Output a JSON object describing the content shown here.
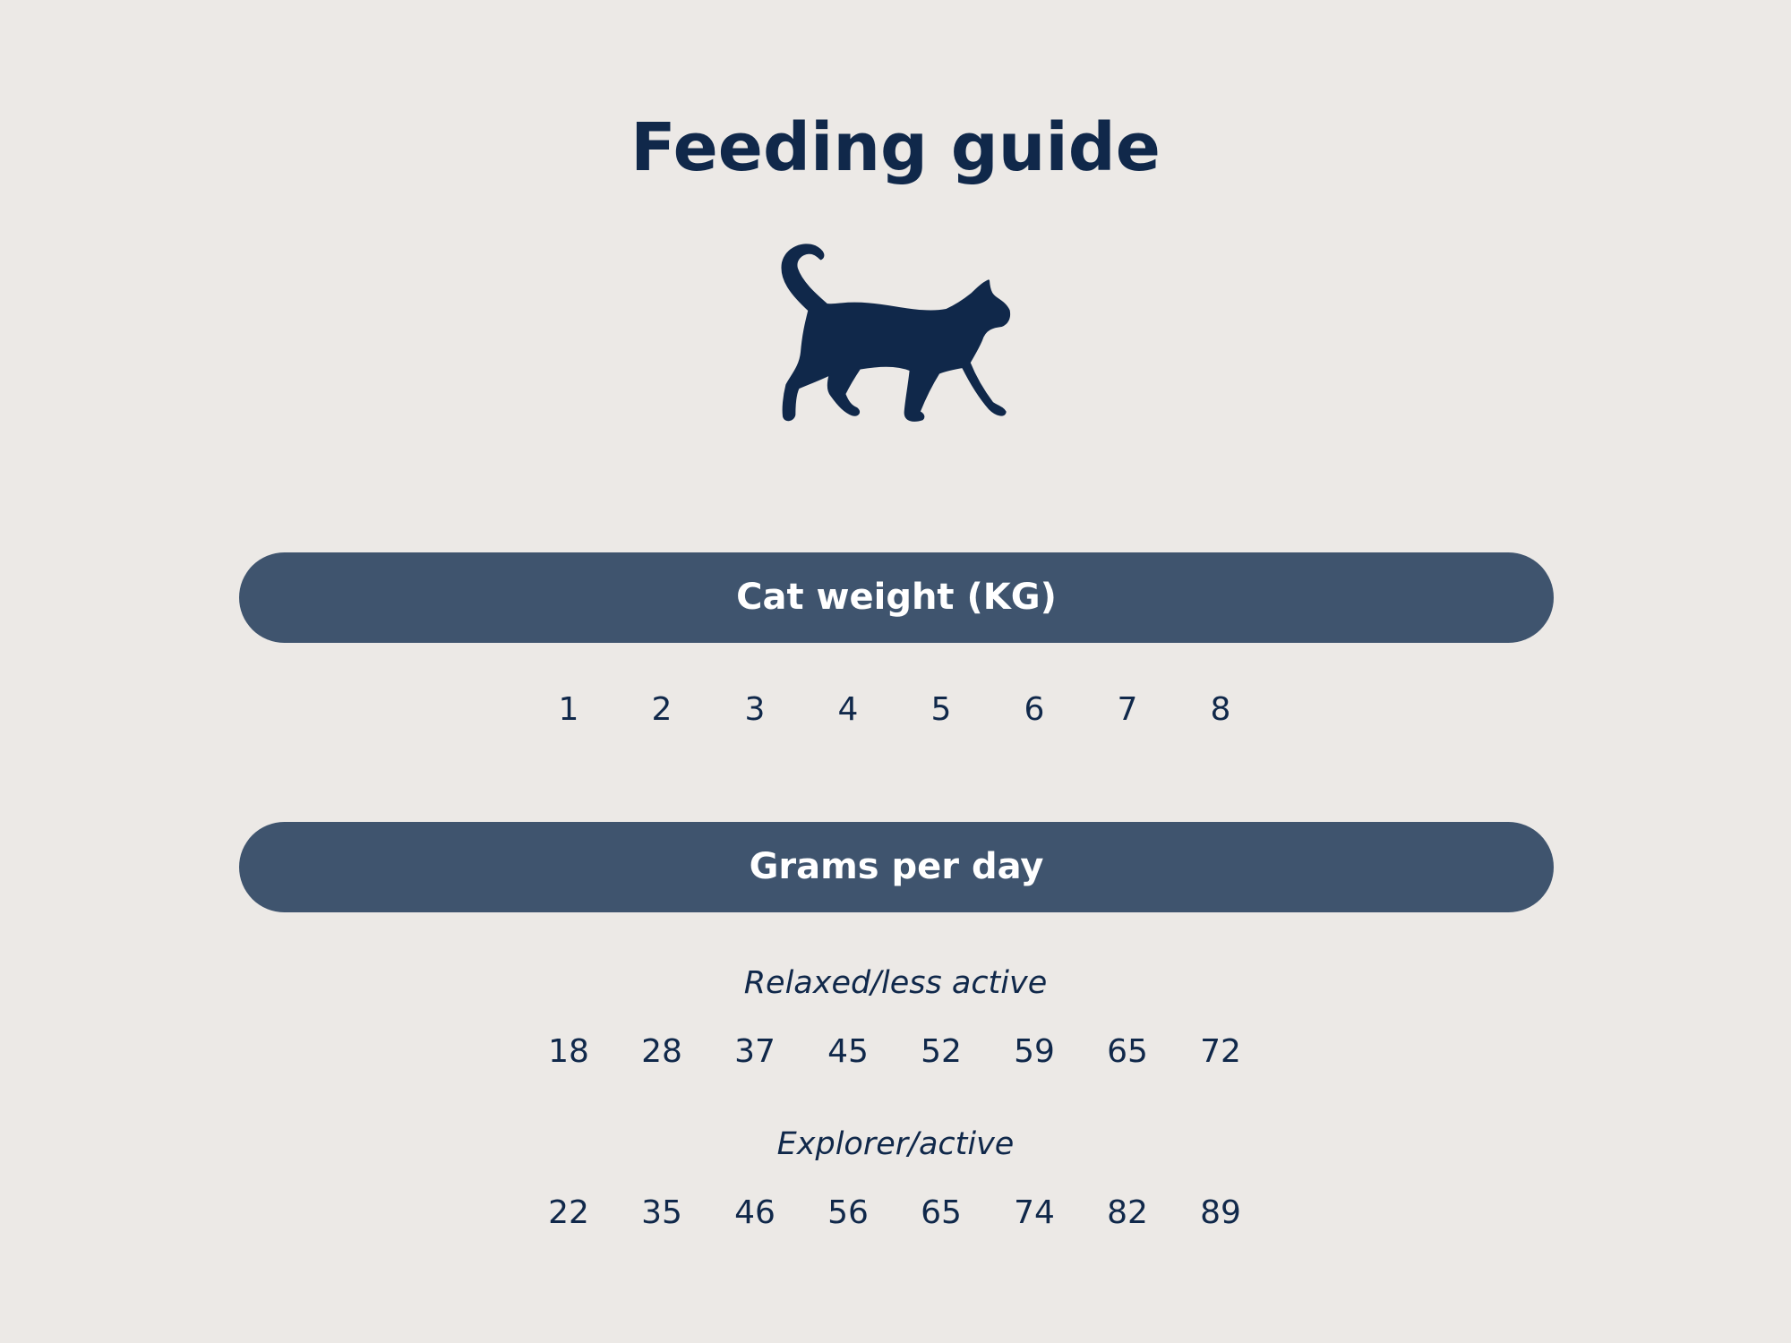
{
  "title": "Feeding guide",
  "icon": "walking-cat-icon",
  "colors": {
    "background": "#ece9e6",
    "text": "#10284a",
    "bar": "#3f546e"
  },
  "weight_header": "Cat weight (KG)",
  "weights": [
    "1",
    "2",
    "3",
    "4",
    "5",
    "6",
    "7",
    "8"
  ],
  "grams_header": "Grams per day",
  "relaxed": {
    "label": "Relaxed/less active",
    "values": [
      "18",
      "28",
      "37",
      "45",
      "52",
      "59",
      "65",
      "72"
    ]
  },
  "explorer": {
    "label": "Explorer/active",
    "values": [
      "22",
      "35",
      "46",
      "56",
      "65",
      "74",
      "82",
      "89"
    ]
  }
}
